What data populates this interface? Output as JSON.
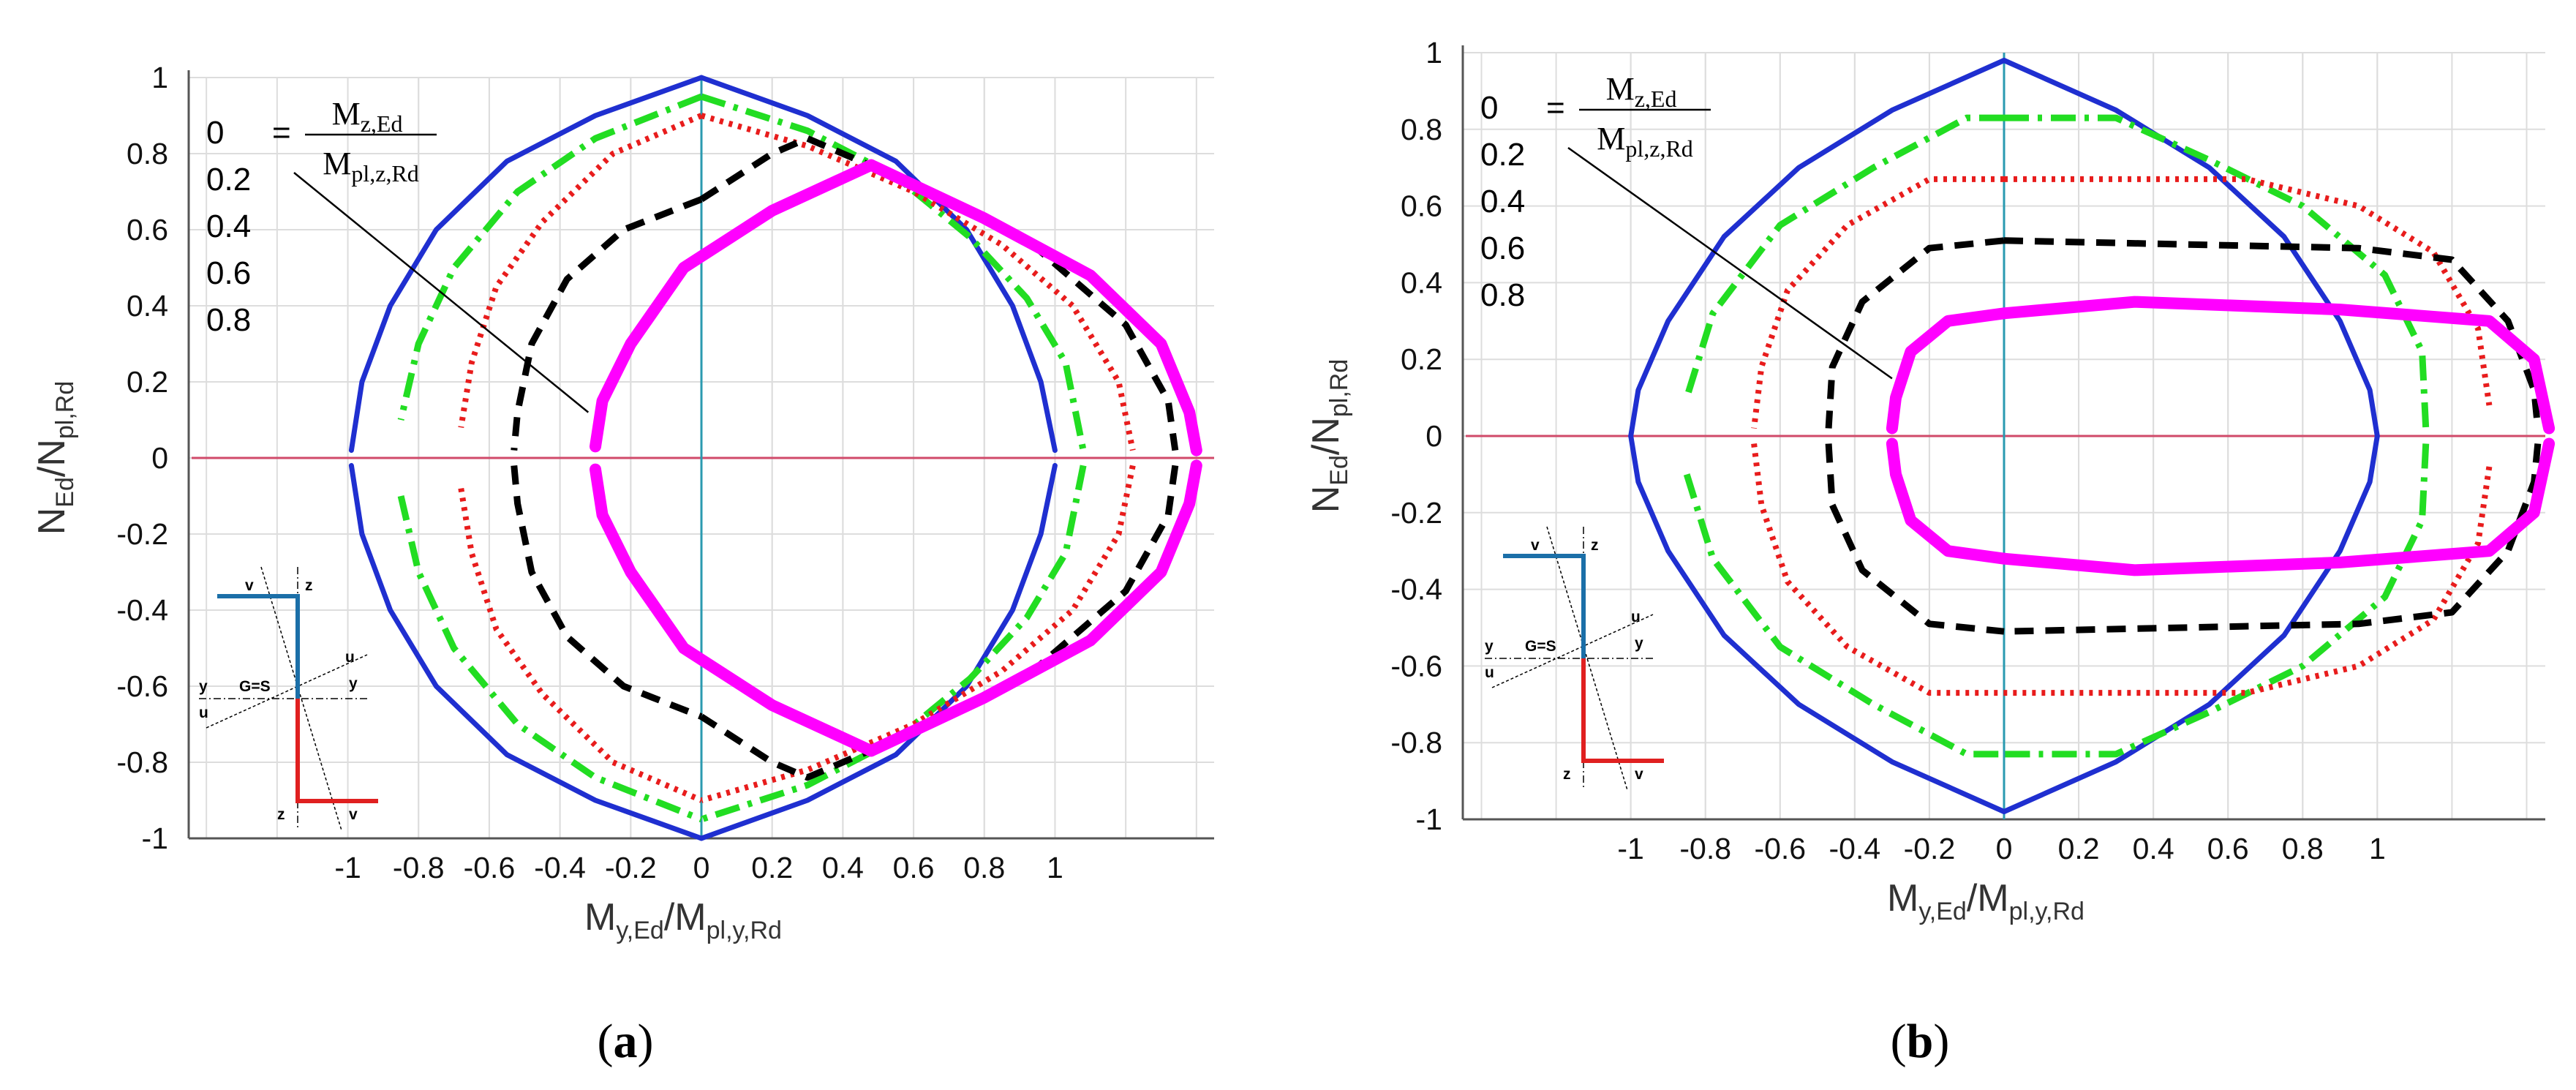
{
  "chart_data": [
    {
      "type": "line",
      "panel_label": "a",
      "caption": {
        "open": "(",
        "letter": "a",
        "close": ")"
      },
      "xlabel": {
        "main": "M",
        "sub1": "y,Ed",
        "slash": "/M",
        "sub2": "pl,y,Rd"
      },
      "ylabel": {
        "main": "N",
        "sub1": "Ed",
        "slash": "/N",
        "sub2": "pl,Rd"
      },
      "xlim": [
        -1.45,
        1.45
      ],
      "ylim": [
        -1,
        1
      ],
      "grid": true,
      "x_tick_labels": [
        "-1",
        "-0.8",
        "-0.6",
        "-0.4",
        "-0.2",
        "0",
        "0.2",
        "0.4",
        "0.6",
        "0.8",
        "1"
      ],
      "y_tick_labels": [
        "1",
        "0.8",
        "0.6",
        "0.4",
        "0.2",
        "0",
        "-0.2",
        "-0.4",
        "-0.6",
        "-0.8",
        "-1"
      ],
      "legend_entries": [
        "0",
        "0.2",
        "0.4",
        "0.6",
        "0.8"
      ],
      "legend_fraction": {
        "numerator_main": "M",
        "numerator_sub": "z,Ed",
        "denominator_main": "M",
        "denominator_sub": "pl,z,Rd",
        "equals": "="
      },
      "legend_pointer_target": {
        "x": -0.32,
        "y": 0.12
      },
      "section_labels": {
        "v": "v",
        "z": "z",
        "y": "y",
        "u": "u",
        "center": "G=S"
      },
      "series": [
        {
          "name": "0",
          "color": "#1f2fd0",
          "style": "solid",
          "right": [
            [
              0,
              1
            ],
            [
              0.3,
              0.9
            ],
            [
              0.55,
              0.78
            ],
            [
              0.75,
              0.6
            ],
            [
              0.88,
              0.4
            ],
            [
              0.96,
              0.2
            ],
            [
              1,
              0.02
            ]
          ],
          "left": [
            [
              0,
              1
            ],
            [
              -0.3,
              0.9
            ],
            [
              -0.55,
              0.78
            ],
            [
              -0.75,
              0.6
            ],
            [
              -0.88,
              0.4
            ],
            [
              -0.96,
              0.2
            ],
            [
              -0.99,
              0.02
            ]
          ]
        },
        {
          "name": "0.2",
          "color": "#22dd22",
          "style": "dashdot",
          "right": [
            [
              0,
              0.95
            ],
            [
              0.3,
              0.86
            ],
            [
              0.55,
              0.74
            ],
            [
              0.76,
              0.58
            ],
            [
              0.92,
              0.42
            ],
            [
              1.03,
              0.25
            ],
            [
              1.08,
              0.02
            ]
          ],
          "left": [
            [
              0,
              0.95
            ],
            [
              -0.3,
              0.84
            ],
            [
              -0.52,
              0.7
            ],
            [
              -0.7,
              0.5
            ],
            [
              -0.8,
              0.3
            ],
            [
              -0.85,
              0.1
            ]
          ]
        },
        {
          "name": "0.4",
          "color": "#e81c1c",
          "style": "dotted",
          "right": [
            [
              0,
              0.9
            ],
            [
              0.3,
              0.82
            ],
            [
              0.6,
              0.7
            ],
            [
              0.85,
              0.56
            ],
            [
              1.05,
              0.4
            ],
            [
              1.18,
              0.2
            ],
            [
              1.22,
              0.02
            ]
          ],
          "left": [
            [
              0,
              0.9
            ],
            [
              -0.25,
              0.8
            ],
            [
              -0.45,
              0.62
            ],
            [
              -0.58,
              0.45
            ],
            [
              -0.65,
              0.25
            ],
            [
              -0.68,
              0.08
            ]
          ]
        },
        {
          "name": "0.6",
          "color": "#000000",
          "style": "dashed",
          "right": [
            [
              0,
              0.68
            ],
            [
              0.2,
              0.8
            ],
            [
              0.3,
              0.84
            ],
            [
              0.6,
              0.72
            ],
            [
              0.95,
              0.55
            ],
            [
              1.2,
              0.35
            ],
            [
              1.32,
              0.15
            ],
            [
              1.34,
              0.02
            ]
          ],
          "left": [
            [
              0,
              0.68
            ],
            [
              -0.22,
              0.6
            ],
            [
              -0.38,
              0.47
            ],
            [
              -0.48,
              0.3
            ],
            [
              -0.52,
              0.12
            ],
            [
              -0.53,
              0.02
            ]
          ]
        },
        {
          "name": "0.8",
          "color": "#ff00ff",
          "style": "thick",
          "right": [
            [
              0.48,
              0.77
            ],
            [
              0.8,
              0.63
            ],
            [
              1.1,
              0.48
            ],
            [
              1.3,
              0.3
            ],
            [
              1.38,
              0.12
            ],
            [
              1.4,
              0.02
            ]
          ],
          "left": [
            [
              0.48,
              0.77
            ],
            [
              0.2,
              0.65
            ],
            [
              -0.05,
              0.5
            ],
            [
              -0.2,
              0.3
            ],
            [
              -0.28,
              0.15
            ],
            [
              -0.3,
              0.03
            ]
          ]
        }
      ]
    },
    {
      "type": "line",
      "panel_label": "b",
      "caption": {
        "open": "(",
        "letter": "b",
        "close": ")"
      },
      "xlabel": {
        "main": "M",
        "sub1": "y,Ed",
        "slash": "/M",
        "sub2": "pl,y,Rd"
      },
      "ylabel": {
        "main": "N",
        "sub1": "Ed",
        "slash": "/N",
        "sub2": "pl,Rd"
      },
      "xlim": [
        -1.45,
        1.45
      ],
      "ylim": [
        -1,
        1
      ],
      "grid": true,
      "x_tick_labels": [
        "-1",
        "-0.8",
        "-0.6",
        "-0.4",
        "-0.2",
        "0",
        "0.2",
        "0.4",
        "0.6",
        "0.8",
        "1"
      ],
      "y_tick_labels": [
        "1",
        "0.8",
        "0.6",
        "0.4",
        "0.2",
        "0",
        "-0.2",
        "-0.4",
        "-0.6",
        "-0.8",
        "-1"
      ],
      "legend_entries": [
        "0",
        "0.2",
        "0.4",
        "0.6",
        "0.8"
      ],
      "legend_fraction": {
        "numerator_main": "M",
        "numerator_sub": "z,Ed",
        "denominator_main": "M",
        "denominator_sub": "pl,z,Rd",
        "equals": "="
      },
      "legend_pointer_target": {
        "x": -0.3,
        "y": 0.15
      },
      "section_labels": {
        "v": "v",
        "z": "z",
        "y": "y",
        "u": "u",
        "center": "G=S"
      },
      "series": [
        {
          "name": "0",
          "color": "#1f2fd0",
          "style": "solid",
          "right": [
            [
              0,
              0.98
            ],
            [
              0.3,
              0.85
            ],
            [
              0.55,
              0.7
            ],
            [
              0.75,
              0.52
            ],
            [
              0.9,
              0.3
            ],
            [
              0.98,
              0.12
            ],
            [
              1,
              0
            ]
          ],
          "left": [
            [
              0,
              0.98
            ],
            [
              -0.3,
              0.85
            ],
            [
              -0.55,
              0.7
            ],
            [
              -0.75,
              0.52
            ],
            [
              -0.9,
              0.3
            ],
            [
              -0.98,
              0.12
            ],
            [
              -1,
              0
            ]
          ]
        },
        {
          "name": "0.2",
          "color": "#22dd22",
          "style": "dashdot",
          "right": [
            [
              0,
              0.83
            ],
            [
              0.3,
              0.83
            ],
            [
              0.55,
              0.72
            ],
            [
              0.8,
              0.6
            ],
            [
              1.02,
              0.42
            ],
            [
              1.12,
              0.22
            ],
            [
              1.13,
              0.02
            ]
          ],
          "left": [
            [
              0,
              0.83
            ],
            [
              -0.1,
              0.83
            ],
            [
              -0.35,
              0.7
            ],
            [
              -0.6,
              0.55
            ],
            [
              -0.78,
              0.32
            ],
            [
              -0.85,
              0.1
            ]
          ]
        },
        {
          "name": "0.4",
          "color": "#e81c1c",
          "style": "dotted",
          "right": [
            [
              0,
              0.67
            ],
            [
              0.65,
              0.67
            ],
            [
              0.95,
              0.6
            ],
            [
              1.15,
              0.48
            ],
            [
              1.27,
              0.28
            ],
            [
              1.3,
              0.08
            ]
          ],
          "left": [
            [
              0,
              0.67
            ],
            [
              -0.2,
              0.67
            ],
            [
              -0.42,
              0.55
            ],
            [
              -0.58,
              0.38
            ],
            [
              -0.65,
              0.18
            ],
            [
              -0.67,
              0.02
            ]
          ]
        },
        {
          "name": "0.6",
          "color": "#000000",
          "style": "dashed",
          "right": [
            [
              0,
              0.51
            ],
            [
              0.95,
              0.49
            ],
            [
              1.2,
              0.46
            ],
            [
              1.35,
              0.3
            ],
            [
              1.42,
              0.12
            ],
            [
              1.43,
              0.02
            ]
          ],
          "left": [
            [
              0,
              0.51
            ],
            [
              -0.2,
              0.49
            ],
            [
              -0.38,
              0.35
            ],
            [
              -0.46,
              0.18
            ],
            [
              -0.47,
              0.02
            ]
          ]
        },
        {
          "name": "0.8",
          "color": "#ff00ff",
          "style": "thick",
          "right": [
            [
              0,
              0.32
            ],
            [
              0.35,
              0.35
            ],
            [
              0.9,
              0.33
            ],
            [
              1.3,
              0.3
            ],
            [
              1.42,
              0.2
            ],
            [
              1.46,
              0.02
            ]
          ],
          "left": [
            [
              0,
              0.32
            ],
            [
              -0.15,
              0.3
            ],
            [
              -0.25,
              0.22
            ],
            [
              -0.29,
              0.1
            ],
            [
              -0.3,
              0.02
            ]
          ]
        }
      ]
    }
  ]
}
